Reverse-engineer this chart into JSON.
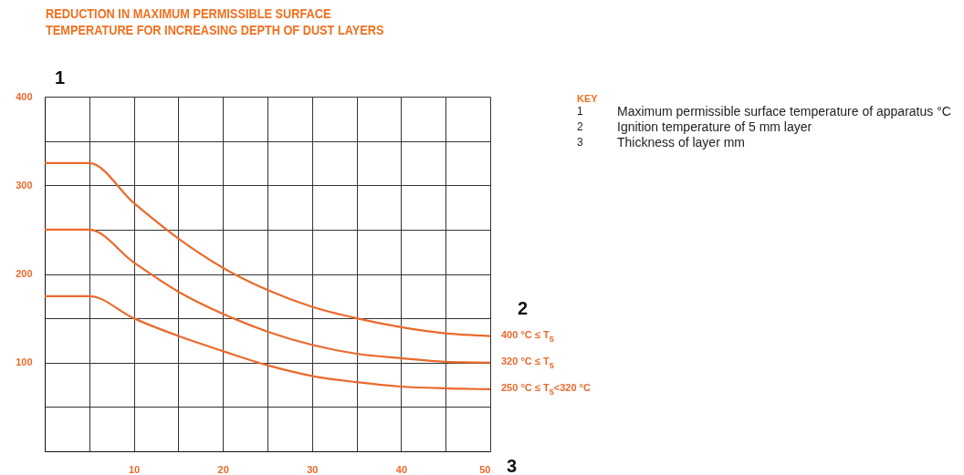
{
  "chart_data": {
    "type": "line",
    "title": "REDUCTION IN MAXIMUM PERMISSIBLE SURFACE\nTEMPERATURE FOR INCREASING DEPTH OF DUST LAYERS",
    "xlabel": "3",
    "ylabel": "1",
    "legend_title": "2",
    "x": [
      0,
      5,
      10,
      15,
      20,
      25,
      30,
      35,
      40,
      45,
      50
    ],
    "series": [
      {
        "name": "400 °C ≤ T$_{5}$",
        "color": "#ea6a2c",
        "values": [
          325,
          325,
          280,
          240,
          207,
          182,
          163,
          150,
          140,
          133,
          130
        ]
      },
      {
        "name": "320 °C ≤ T$_{5}$",
        "color": "#ea6a2c",
        "values": [
          250,
          250,
          213,
          180,
          155,
          135,
          120,
          110,
          105,
          101,
          100
        ]
      },
      {
        "name": "250 °C ≤ T$_{5}$<320 °C",
        "color": "#ea6a2c",
        "values": [
          175,
          175,
          150,
          130,
          113,
          97,
          85,
          78,
          73,
          71,
          70
        ]
      }
    ],
    "xlim": [
      0,
      50
    ],
    "ylim": [
      0,
      400
    ],
    "xticks": [
      {
        "value": 5,
        "label": null
      },
      10,
      {
        "value": 15,
        "label": null
      },
      20,
      {
        "value": 25,
        "label": null
      },
      30,
      {
        "value": 35,
        "label": null
      },
      40,
      {
        "value": 45,
        "label": null
      },
      50
    ],
    "yticks": [
      {
        "value": 50,
        "label": null
      },
      100,
      {
        "value": 150,
        "label": null
      },
      200,
      {
        "value": 250,
        "label": null
      },
      300,
      {
        "value": 350,
        "label": null
      },
      400
    ],
    "grid": true,
    "legend": "right",
    "line_style": "solid",
    "marker": "none",
    "annotations": [
      "KEY",
      "1 Maximum permissible surface temperature of apparatus °C",
      "2 Ignition temperature of 5 mm layer",
      "3 Thickness of layer mm"
    ]
  }
}
